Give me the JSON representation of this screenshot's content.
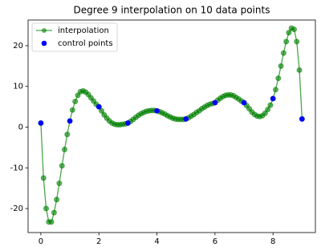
{
  "chart_data": {
    "type": "line",
    "title": "Degree 9 interpolation on 10 data points",
    "xlim": [
      -0.44,
      9.46
    ],
    "ylim": [
      -25.9,
      26.3
    ],
    "xticks": [
      0,
      2,
      4,
      6,
      8
    ],
    "yticks": [
      -20,
      -10,
      0,
      10,
      20
    ],
    "legend": "upper left",
    "series": [
      {
        "name": "interpolation",
        "color": "#008000",
        "marker": "o",
        "x": [
          0,
          0.091,
          0.182,
          0.273,
          0.364,
          0.455,
          0.545,
          0.636,
          0.727,
          0.818,
          0.909,
          1,
          1.091,
          1.182,
          1.273,
          1.364,
          1.455,
          1.545,
          1.636,
          1.727,
          1.818,
          1.909,
          2,
          2.091,
          2.182,
          2.273,
          2.364,
          2.455,
          2.545,
          2.636,
          2.727,
          2.818,
          2.909,
          3,
          3.091,
          3.182,
          3.273,
          3.364,
          3.455,
          3.545,
          3.636,
          3.727,
          3.818,
          3.909,
          4,
          4.091,
          4.182,
          4.273,
          4.364,
          4.455,
          4.545,
          4.636,
          4.727,
          4.818,
          4.909,
          5,
          5.091,
          5.182,
          5.273,
          5.364,
          5.455,
          5.545,
          5.636,
          5.727,
          5.818,
          5.909,
          6,
          6.091,
          6.182,
          6.273,
          6.364,
          6.455,
          6.545,
          6.636,
          6.727,
          6.818,
          6.909,
          7,
          7.091,
          7.182,
          7.273,
          7.364,
          7.455,
          7.545,
          7.636,
          7.727,
          7.818,
          7.909,
          8,
          8.091,
          8.182,
          8.273,
          8.364,
          8.455,
          8.545,
          8.636,
          8.727,
          8.818,
          8.909,
          9
        ],
        "values": [
          1,
          -12.5,
          -20,
          -23.3,
          -23.3,
          -21,
          -17.8,
          -13.8,
          -9.5,
          -5.5,
          -1.8,
          1.5,
          4.2,
          6.3,
          7.8,
          8.7,
          8.9,
          8.6,
          8.0,
          7.2,
          6.4,
          5.6,
          5,
          4.0,
          3.0,
          2.2,
          1.5,
          1.0,
          0.7,
          0.6,
          0.6,
          0.7,
          0.8,
          1,
          1.4,
          1.9,
          2.4,
          2.9,
          3.3,
          3.6,
          3.9,
          4.0,
          4.1,
          4.1,
          4,
          3.8,
          3.5,
          3.2,
          2.8,
          2.5,
          2.2,
          2.0,
          1.9,
          1.9,
          1.9,
          2,
          2.3,
          2.7,
          3.1,
          3.6,
          4.0,
          4.5,
          4.9,
          5.3,
          5.6,
          5.8,
          6,
          6.6,
          7.1,
          7.5,
          7.8,
          7.9,
          7.9,
          7.7,
          7.3,
          6.9,
          6.4,
          6,
          5.3,
          4.5,
          3.7,
          3.1,
          2.7,
          2.6,
          2.8,
          3.4,
          4.3,
          5.4,
          7,
          9.2,
          12.0,
          15.0,
          18.2,
          21.0,
          23.2,
          24.3,
          24.0,
          21.0,
          14.0,
          2
        ]
      },
      {
        "name": "control points",
        "color": "#0000ff",
        "type": "scatter",
        "x": [
          0,
          1,
          2,
          3,
          4,
          5,
          6,
          7,
          8,
          9
        ],
        "values": [
          1,
          1.5,
          5,
          1,
          4,
          2,
          6,
          6,
          7,
          2
        ]
      }
    ]
  }
}
